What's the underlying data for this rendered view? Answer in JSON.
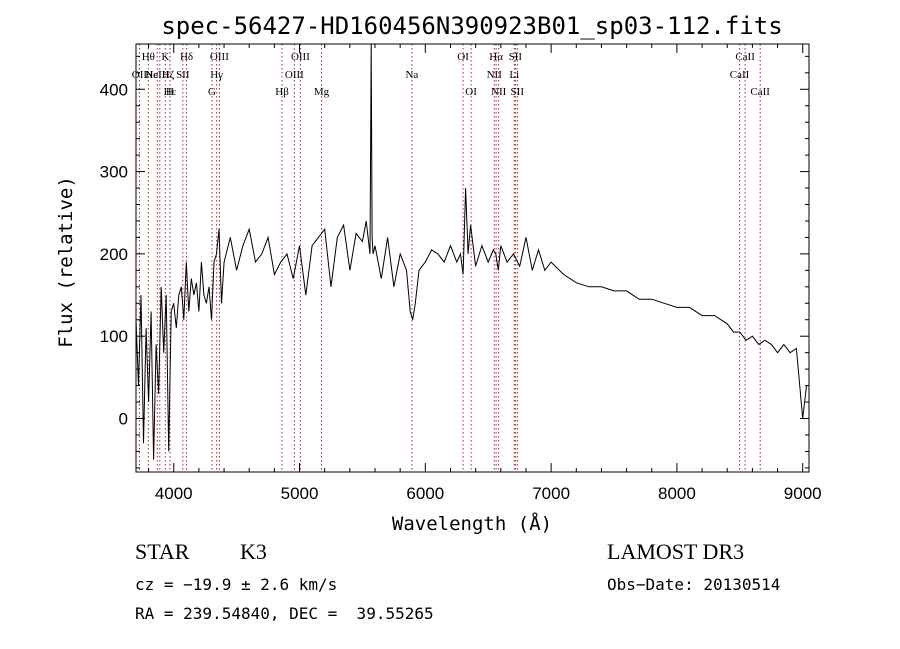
{
  "chart_data": {
    "type": "line",
    "title": "spec-56427-HD160456N390923B01_sp03-112.fits",
    "xlabel": "Wavelength (Å)",
    "ylabel": "Flux (relative)",
    "xlim": [
      3700,
      9050
    ],
    "ylim": [
      -65,
      455
    ],
    "xticks": [
      4000,
      5000,
      6000,
      7000,
      8000,
      9000
    ],
    "xtick_labels": [
      "4000",
      "5000",
      "6000",
      "7000",
      "8000",
      "9000"
    ],
    "yticks": [
      0,
      100,
      200,
      300,
      400
    ],
    "ytick_labels": [
      "0",
      "100",
      "200",
      "300",
      "400"
    ],
    "grid": false,
    "series": [
      {
        "name": "spectrum",
        "x": [
          3700,
          3720,
          3740,
          3760,
          3780,
          3800,
          3820,
          3840,
          3860,
          3880,
          3900,
          3920,
          3940,
          3960,
          3980,
          4000,
          4020,
          4040,
          4060,
          4080,
          4100,
          4120,
          4140,
          4160,
          4180,
          4200,
          4220,
          4240,
          4260,
          4280,
          4300,
          4320,
          4340,
          4360,
          4380,
          4400,
          4450,
          4500,
          4550,
          4600,
          4650,
          4700,
          4750,
          4800,
          4850,
          4900,
          4950,
          5000,
          5050,
          5100,
          5150,
          5200,
          5250,
          5300,
          5350,
          5400,
          5450,
          5500,
          5530,
          5560,
          5570,
          5577,
          5585,
          5600,
          5650,
          5700,
          5750,
          5800,
          5850,
          5880,
          5900,
          5920,
          5950,
          6000,
          6050,
          6100,
          6150,
          6200,
          6250,
          6280,
          6300,
          6320,
          6340,
          6360,
          6400,
          6450,
          6500,
          6540,
          6560,
          6580,
          6600,
          6650,
          6700,
          6750,
          6800,
          6850,
          6900,
          6950,
          7000,
          7100,
          7200,
          7300,
          7400,
          7500,
          7600,
          7700,
          7800,
          7900,
          8000,
          8100,
          8200,
          8300,
          8400,
          8450,
          8500,
          8550,
          8600,
          8650,
          8700,
          8750,
          8800,
          8850,
          8900,
          8950,
          9000,
          9030
        ],
        "y": [
          120,
          40,
          150,
          -30,
          110,
          20,
          130,
          -50,
          90,
          30,
          160,
          80,
          150,
          -40,
          130,
          140,
          110,
          150,
          160,
          120,
          190,
          130,
          170,
          150,
          165,
          130,
          190,
          150,
          140,
          160,
          120,
          190,
          200,
          230,
          140,
          190,
          220,
          180,
          210,
          230,
          190,
          200,
          220,
          175,
          190,
          200,
          170,
          210,
          150,
          210,
          220,
          230,
          160,
          220,
          235,
          180,
          225,
          215,
          240,
          200,
          460,
          220,
          200,
          210,
          170,
          220,
          160,
          200,
          180,
          130,
          120,
          140,
          180,
          190,
          205,
          200,
          190,
          210,
          190,
          200,
          175,
          280,
          200,
          235,
          185,
          210,
          190,
          205,
          200,
          180,
          210,
          190,
          200,
          185,
          220,
          180,
          205,
          180,
          190,
          175,
          165,
          160,
          160,
          155,
          155,
          145,
          145,
          140,
          135,
          135,
          125,
          125,
          115,
          105,
          105,
          95,
          100,
          90,
          95,
          90,
          80,
          90,
          80,
          85,
          0,
          40
        ]
      }
    ],
    "line_markers": [
      {
        "w": 3798,
        "label": "Hθ",
        "row": 0
      },
      {
        "w": 3727,
        "label": "OII",
        "row": 1
      },
      {
        "w": 3869,
        "label": "NeIII",
        "row": 1
      },
      {
        "w": 3889,
        "label": "HeIHζ",
        "row": 1
      },
      {
        "w": 3933,
        "label": "K",
        "row": 0
      },
      {
        "w": 3970,
        "label": "H",
        "row": 2
      },
      {
        "w": 3970,
        "label": "Hε",
        "row": 2
      },
      {
        "w": 4102,
        "label": "Hδ",
        "row": 0
      },
      {
        "w": 4072,
        "label": "SII",
        "row": 1
      },
      {
        "w": 4304,
        "label": "G",
        "row": 2
      },
      {
        "w": 4341,
        "label": "Hγ",
        "row": 1
      },
      {
        "w": 4363,
        "label": "OIII",
        "row": 0
      },
      {
        "w": 4861,
        "label": "Hβ",
        "row": 2
      },
      {
        "w": 4959,
        "label": "OIII",
        "row": 1
      },
      {
        "w": 5007,
        "label": "OIII",
        "row": 0
      },
      {
        "w": 5175,
        "label": "Mg",
        "row": 2
      },
      {
        "w": 5893,
        "label": "Na",
        "row": 1
      },
      {
        "w": 6300,
        "label": "OI",
        "row": 0
      },
      {
        "w": 6364,
        "label": "OI",
        "row": 2
      },
      {
        "w": 6548,
        "label": "NII",
        "row": 1
      },
      {
        "w": 6563,
        "label": "Hα",
        "row": 0
      },
      {
        "w": 6583,
        "label": "NII",
        "row": 2
      },
      {
        "w": 6707,
        "label": "Li",
        "row": 1
      },
      {
        "w": 6716,
        "label": "SII",
        "row": 0
      },
      {
        "w": 6731,
        "label": "SII",
        "row": 2
      },
      {
        "w": 8498,
        "label": "CaII",
        "row": 1
      },
      {
        "w": 8542,
        "label": "CaII",
        "row": 0
      },
      {
        "w": 8662,
        "label": "CaII",
        "row": 2
      }
    ]
  },
  "footer": {
    "object_class": "STAR",
    "subclass": "K3",
    "survey": "LAMOST DR3",
    "redshift": "cz = −19.9 ± 2.6 km/s",
    "obs_date": "Obs−Date: 20130514",
    "coords": "RA = 239.54840, DEC =  39.55265"
  },
  "colors": {
    "line": "#000000",
    "marker": "#a52a2a"
  }
}
